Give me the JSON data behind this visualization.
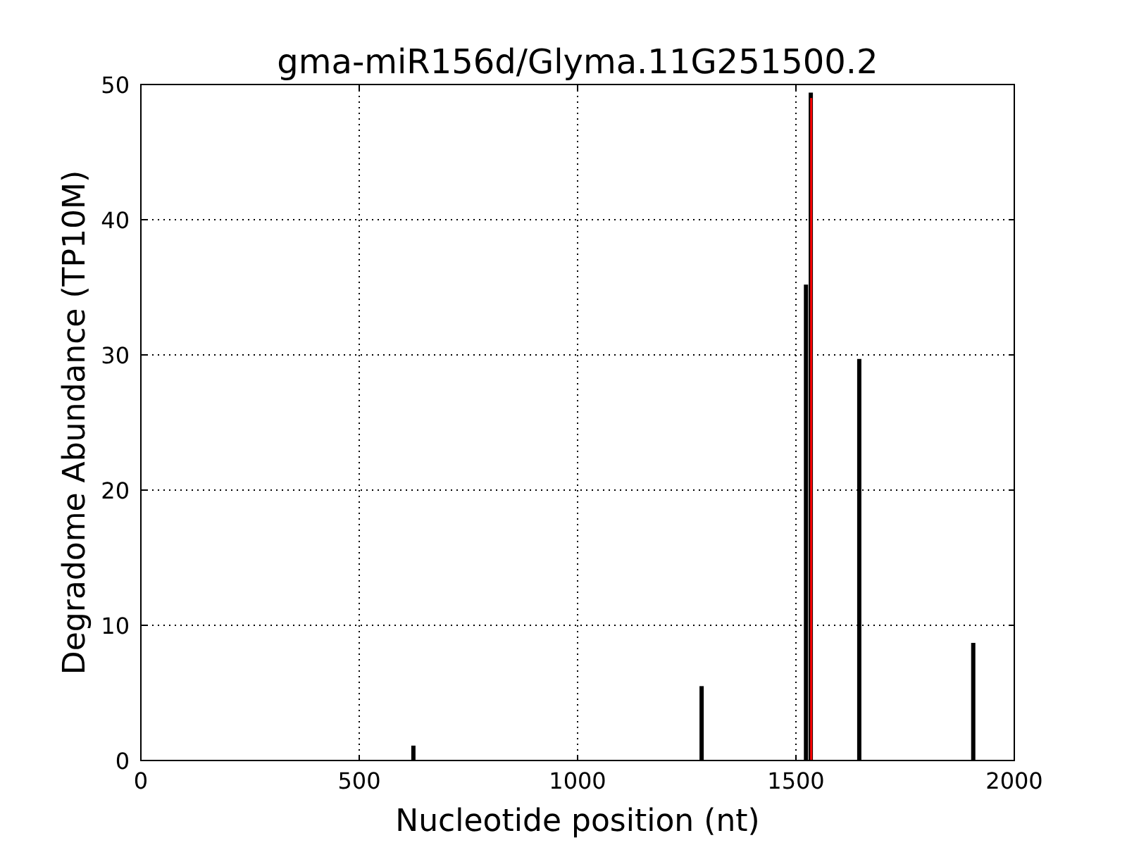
{
  "chart_data": {
    "type": "bar",
    "title": "gma-miR156d/Glyma.11G251500.2",
    "xlabel": "Nucleotide position (nt)",
    "ylabel": "Degradome Abundance (TP10M)",
    "xlim": [
      0,
      2000
    ],
    "ylim": [
      0,
      50
    ],
    "xticks": [
      0,
      500,
      1000,
      1500,
      2000
    ],
    "yticks": [
      0,
      10,
      20,
      30,
      40,
      50
    ],
    "grid": true,
    "series": [
      {
        "color": "#000000",
        "x": [
          624,
          1284,
          1523,
          1534,
          1645,
          1906
        ],
        "values": [
          1.1,
          5.5,
          35.2,
          49.4,
          29.7,
          8.7
        ]
      },
      {
        "color": "#ff0000",
        "x": [
          1535
        ],
        "values": [
          49.0
        ]
      }
    ]
  }
}
